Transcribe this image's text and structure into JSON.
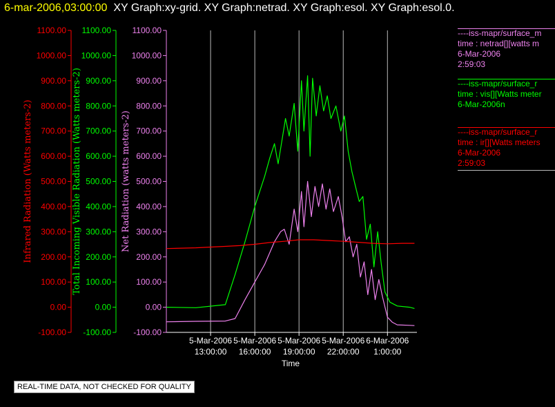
{
  "header": {
    "timestamp": "6-mar-2006,03:00:00",
    "graphs": "XY Graph:xy-grid.  XY Graph:netrad.  XY Graph:esol.  XY Graph:esol.0."
  },
  "colors": {
    "background": "#000000",
    "infrared": "#ff0000",
    "visible": "#00ff00",
    "net": "#ee82ee",
    "grid": "#bbbbbb",
    "text": "#ffffff"
  },
  "legend": [
    {
      "color": "#ee82ee",
      "source": "----iss-mapr/surface_m",
      "variable": "time : netrad[][watts m",
      "date": "6-Mar-2006",
      "time": "2:59:03"
    },
    {
      "color": "#00ff00",
      "source": "----iss-mapr/surface_r",
      "variable": "time : vis[][Watts meter",
      "date": "6-Mar-2006n",
      "time": ""
    },
    {
      "color": "#ff0000",
      "source": "----iss-mapr/surface_r",
      "variable": "time : ir[][Watts meters",
      "date": "6-Mar-2006",
      "time": "2:59:03"
    }
  ],
  "footer": {
    "quality_note": "REAL-TIME DATA, NOT CHECKED FOR QUALITY"
  },
  "chart_data": {
    "type": "line",
    "xlabel": "Time",
    "xlim": [
      "2006-03-05T10:00",
      "2006-03-06T03:00"
    ],
    "x_ticks": [
      {
        "t": "2006-03-05T13:00",
        "date": "5-Mar-2006",
        "time": "13:00:00"
      },
      {
        "t": "2006-03-05T16:00",
        "date": "5-Mar-2006",
        "time": "16:00:00"
      },
      {
        "t": "2006-03-05T19:00",
        "date": "5-Mar-2006",
        "time": "19:00:00"
      },
      {
        "t": "2006-03-05T22:00",
        "date": "5-Mar-2006",
        "time": "22:00:00"
      },
      {
        "t": "2006-03-06T01:00",
        "date": "6-Mar-2006",
        "time": "1:00:00"
      }
    ],
    "ylim": [
      -100,
      1100
    ],
    "y_ticks": [
      -100,
      0,
      100,
      200,
      300,
      400,
      500,
      600,
      700,
      800,
      900,
      1000,
      1100
    ],
    "y_axes": [
      {
        "label": "Infrared Radiation (Watts meters-2)",
        "color": "#ff0000",
        "tick_labels": [
          "-100.00",
          "0.00",
          "100.00",
          "200.00",
          "300.00",
          "400.00",
          "500.00",
          "600.00",
          "700.00",
          "800.00",
          "900.00",
          "1000.00",
          "1100.00"
        ]
      },
      {
        "label": "Total Incoming Visible Radiation (Watts meters-2)",
        "color": "#00ff00",
        "tick_labels": [
          "-100.00",
          "0.00",
          "100.00",
          "200.00",
          "300.00",
          "400.00",
          "500.00",
          "600.00",
          "700.00",
          "800.00",
          "900.00",
          "1000.00",
          "1100.00"
        ]
      },
      {
        "label": "Net Radiation (watts meters-2)",
        "color": "#ee82ee",
        "tick_labels": [
          "-100.00",
          "0.00",
          "100.00",
          "200.00",
          "300.00",
          "400.00",
          "500.00",
          "600.00",
          "700.00",
          "800.00",
          "900.00",
          "1000.00",
          "1100.00"
        ]
      }
    ],
    "grid": true,
    "series": [
      {
        "axis": 2,
        "color": "#ee82ee",
        "points": [
          [
            "2006-03-05T10:00",
            -58
          ],
          [
            "2006-03-05T12:00",
            -56
          ],
          [
            "2006-03-05T14:00",
            -55
          ],
          [
            "2006-03-05T14:40",
            -45
          ],
          [
            "2006-03-05T15:20",
            30
          ],
          [
            "2006-03-05T16:00",
            100
          ],
          [
            "2006-03-05T16:40",
            170
          ],
          [
            "2006-03-05T17:20",
            260
          ],
          [
            "2006-03-05T17:45",
            300
          ],
          [
            "2006-03-05T18:00",
            310
          ],
          [
            "2006-03-05T18:20",
            250
          ],
          [
            "2006-03-05T18:40",
            390
          ],
          [
            "2006-03-05T18:55",
            300
          ],
          [
            "2006-03-05T19:10",
            460
          ],
          [
            "2006-03-05T19:20",
            320
          ],
          [
            "2006-03-05T19:35",
            500
          ],
          [
            "2006-03-05T19:50",
            360
          ],
          [
            "2006-03-05T20:05",
            480
          ],
          [
            "2006-03-05T20:20",
            400
          ],
          [
            "2006-03-05T20:35",
            490
          ],
          [
            "2006-03-05T20:50",
            390
          ],
          [
            "2006-03-05T21:05",
            470
          ],
          [
            "2006-03-05T21:20",
            380
          ],
          [
            "2006-03-05T21:40",
            440
          ],
          [
            "2006-03-05T21:55",
            360
          ],
          [
            "2006-03-05T22:10",
            260
          ],
          [
            "2006-03-05T22:25",
            280
          ],
          [
            "2006-03-05T22:40",
            200
          ],
          [
            "2006-03-05T22:55",
            250
          ],
          [
            "2006-03-05T23:10",
            120
          ],
          [
            "2006-03-05T23:25",
            180
          ],
          [
            "2006-03-05T23:40",
            50
          ],
          [
            "2006-03-05T23:55",
            150
          ],
          [
            "2006-03-06T00:10",
            30
          ],
          [
            "2006-03-06T00:25",
            110
          ],
          [
            "2006-03-06T00:40",
            40
          ],
          [
            "2006-03-06T01:00",
            -40
          ],
          [
            "2006-03-06T01:20",
            -60
          ],
          [
            "2006-03-06T01:40",
            -70
          ],
          [
            "2006-03-06T02:30",
            -72
          ],
          [
            "2006-03-06T02:50",
            -73
          ]
        ]
      },
      {
        "axis": 1,
        "color": "#00ff00",
        "points": [
          [
            "2006-03-05T10:00",
            0
          ],
          [
            "2006-03-05T12:00",
            -2
          ],
          [
            "2006-03-05T14:00",
            10
          ],
          [
            "2006-03-05T14:40",
            130
          ],
          [
            "2006-03-05T15:20",
            260
          ],
          [
            "2006-03-05T16:00",
            400
          ],
          [
            "2006-03-05T16:40",
            520
          ],
          [
            "2006-03-05T17:00",
            590
          ],
          [
            "2006-03-05T17:20",
            650
          ],
          [
            "2006-03-05T17:35",
            570
          ],
          [
            "2006-03-05T17:50",
            660
          ],
          [
            "2006-03-05T18:05",
            750
          ],
          [
            "2006-03-05T18:20",
            680
          ],
          [
            "2006-03-05T18:40",
            810
          ],
          [
            "2006-03-05T18:55",
            620
          ],
          [
            "2006-03-05T19:10",
            900
          ],
          [
            "2006-03-05T19:20",
            700
          ],
          [
            "2006-03-05T19:35",
            920
          ],
          [
            "2006-03-05T19:45",
            600
          ],
          [
            "2006-03-05T19:55",
            910
          ],
          [
            "2006-03-05T20:10",
            760
          ],
          [
            "2006-03-05T20:25",
            880
          ],
          [
            "2006-03-05T20:40",
            780
          ],
          [
            "2006-03-05T20:55",
            840
          ],
          [
            "2006-03-05T21:10",
            750
          ],
          [
            "2006-03-05T21:30",
            800
          ],
          [
            "2006-03-05T21:50",
            700
          ],
          [
            "2006-03-05T22:05",
            760
          ],
          [
            "2006-03-05T22:20",
            620
          ],
          [
            "2006-03-05T22:35",
            540
          ],
          [
            "2006-03-05T22:50",
            480
          ],
          [
            "2006-03-05T23:05",
            420
          ],
          [
            "2006-03-05T23:20",
            440
          ],
          [
            "2006-03-05T23:35",
            270
          ],
          [
            "2006-03-05T23:50",
            330
          ],
          [
            "2006-03-06T00:05",
            160
          ],
          [
            "2006-03-06T00:20",
            300
          ],
          [
            "2006-03-06T00:35",
            170
          ],
          [
            "2006-03-06T00:50",
            60
          ],
          [
            "2006-03-06T01:10",
            20
          ],
          [
            "2006-03-06T01:40",
            5
          ],
          [
            "2006-03-06T02:30",
            0
          ],
          [
            "2006-03-06T02:50",
            -5
          ]
        ]
      },
      {
        "axis": 0,
        "color": "#ff0000",
        "points": [
          [
            "2006-03-05T10:00",
            233
          ],
          [
            "2006-03-05T12:00",
            236
          ],
          [
            "2006-03-05T14:00",
            242
          ],
          [
            "2006-03-05T15:00",
            245
          ],
          [
            "2006-03-05T16:00",
            250
          ],
          [
            "2006-03-05T17:00",
            257
          ],
          [
            "2006-03-05T18:00",
            262
          ],
          [
            "2006-03-05T19:00",
            268
          ],
          [
            "2006-03-05T20:00",
            268
          ],
          [
            "2006-03-05T21:00",
            265
          ],
          [
            "2006-03-05T22:00",
            262
          ],
          [
            "2006-03-05T23:00",
            258
          ],
          [
            "2006-03-06T00:00",
            254
          ],
          [
            "2006-03-06T01:00",
            252
          ],
          [
            "2006-03-06T02:00",
            254
          ],
          [
            "2006-03-06T02:50",
            254
          ]
        ]
      }
    ]
  }
}
